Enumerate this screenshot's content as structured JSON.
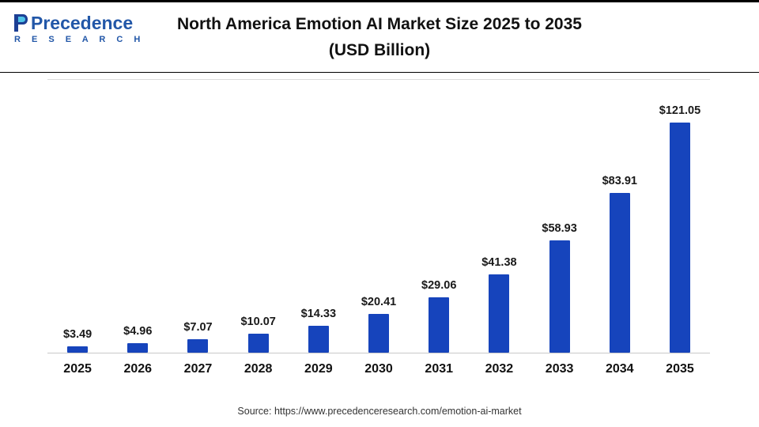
{
  "header": {
    "logo": {
      "name": "Precedence",
      "subname": "R E S E A R C H",
      "color": "#2257a8"
    },
    "title_line1": "North America Emotion AI Market Size 2025 to 2035",
    "title_line2": "(USD Billion)"
  },
  "footer": {
    "source": "Source: https://www.precedenceresearch.com/emotion-ai-market"
  },
  "chart_data": {
    "type": "bar",
    "title": "North America Emotion AI Market Size 2025 to 2035 (USD Billion)",
    "categories": [
      "2025",
      "2026",
      "2027",
      "2028",
      "2029",
      "2030",
      "2031",
      "2032",
      "2033",
      "2034",
      "2035"
    ],
    "values": [
      3.49,
      4.96,
      7.07,
      10.07,
      14.33,
      20.41,
      29.06,
      41.38,
      58.93,
      83.91,
      121.05
    ],
    "value_prefix": "$",
    "xlabel": "",
    "ylabel": "",
    "ylim": [
      0,
      130
    ],
    "grid": "top line and baseline only",
    "legend": "none",
    "bar_color": "#1644bc",
    "axis_line_color": "#c8c8c8"
  }
}
